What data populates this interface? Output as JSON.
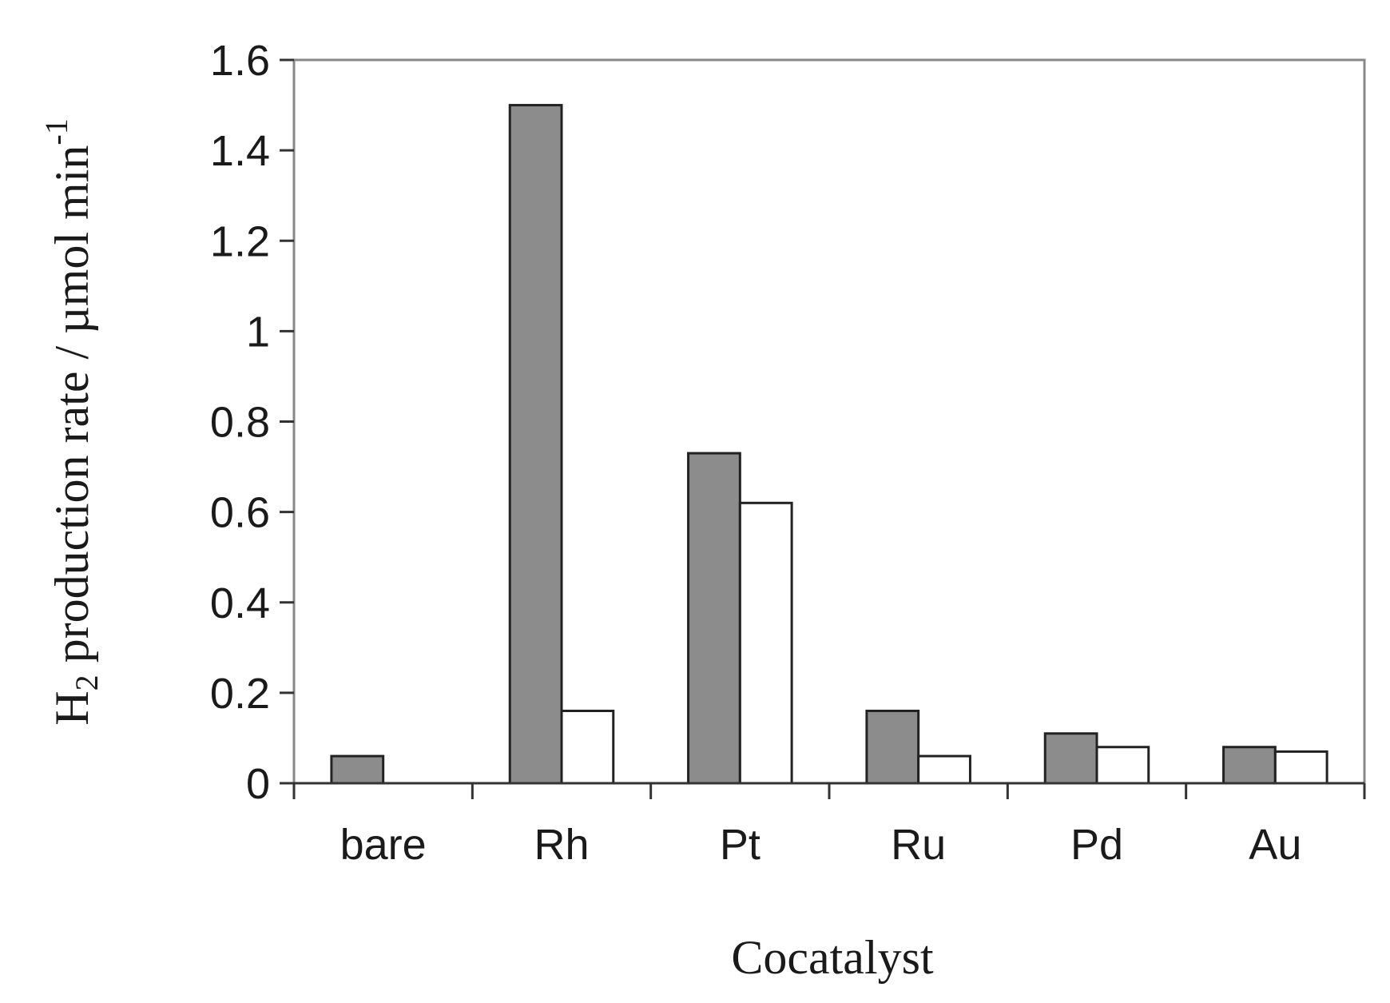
{
  "chart_data": {
    "type": "bar",
    "title": "",
    "xlabel": "Cocatalyst",
    "ylabel": {
      "prefix": "H",
      "prefix_subscript": "2",
      "main": " production rate / µmol min",
      "superscript": "-1"
    },
    "categories": [
      "bare",
      "Rh",
      "Pt",
      "Ru",
      "Pd",
      "Au"
    ],
    "series": [
      {
        "values": [
          0.06,
          1.5,
          0.73,
          0.16,
          0.11,
          0.08
        ],
        "color": "#8c8c8c"
      },
      {
        "values": [
          null,
          0.16,
          0.62,
          0.06,
          0.08,
          0.07
        ],
        "color": "#ffffff"
      }
    ],
    "ylim": [
      0,
      1.6
    ],
    "yticks": [
      "0",
      "0.2",
      "0.4",
      "0.6",
      "0.8",
      "1",
      "1.2",
      "1.4",
      "1.6"
    ],
    "legend": "none",
    "grid": false
  }
}
